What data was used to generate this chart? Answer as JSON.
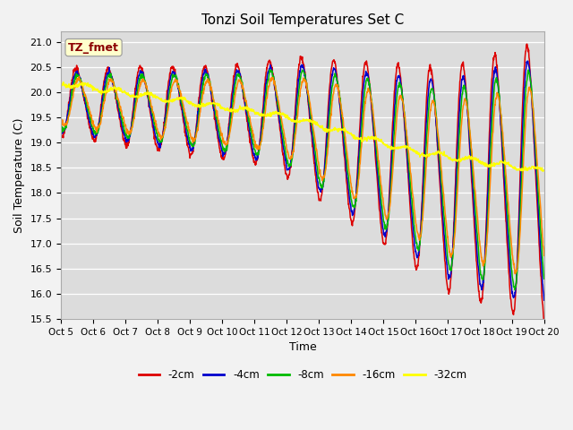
{
  "title": "Tonzi Soil Temperatures Set C",
  "xlabel": "Time",
  "ylabel": "Soil Temperature (C)",
  "ylim": [
    15.5,
    21.2
  ],
  "annotation_text": "TZ_fmet",
  "annotation_color": "#8B0000",
  "annotation_bg": "#FFFFCC",
  "series_colors": {
    "-2cm": "#DD0000",
    "-4cm": "#0000CC",
    "-8cm": "#00BB00",
    "-16cm": "#FF8800",
    "-32cm": "#FFFF00"
  },
  "legend_labels": [
    "-2cm",
    "-4cm",
    "-8cm",
    "-16cm",
    "-32cm"
  ],
  "xtick_labels": [
    "Oct 5",
    "Oct 6",
    "Oct 7",
    "Oct 8",
    "Oct 9",
    "Oct 10",
    "Oct 11",
    "Oct 12",
    "Oct 13",
    "Oct 14",
    "Oct 15",
    "Oct 16",
    "Oct 17",
    "Oct 18",
    "Oct 19",
    "Oct 20"
  ],
  "background_color": "#DCDCDC",
  "plot_bg_color": "#DCDCDC",
  "linewidth": 1.1,
  "fig_bg_color": "#F2F2F2"
}
